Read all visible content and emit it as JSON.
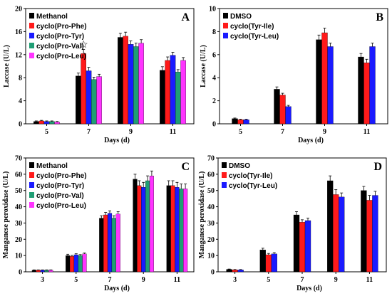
{
  "colors": {
    "black": "#000000",
    "red": "#ff1a1a",
    "blue": "#1a1aff",
    "teal": "#1f9e74",
    "magenta": "#ff33ff"
  },
  "chart_data": [
    {
      "id": "A",
      "type": "bar",
      "panel_label": "A",
      "ylabel": "Laccase (U/L)",
      "xlabel": "Days (d)",
      "ylim": [
        0,
        20
      ],
      "yticks": [
        0,
        4,
        8,
        12,
        16,
        20
      ],
      "categories": [
        "5",
        "7",
        "9",
        "11"
      ],
      "legend_position": "top-left",
      "annotation": {
        "symbol": "star",
        "category": "7",
        "series": "cyclo(Pro-Phe)"
      },
      "series": [
        {
          "name": "Methanol",
          "color": "#000000",
          "values": [
            0.4,
            8.3,
            15.0,
            9.3
          ],
          "errors": [
            0.1,
            0.5,
            0.7,
            0.6
          ]
        },
        {
          "name": "cyclo(Pro-Phe)",
          "color": "#ff1a1a",
          "values": [
            0.5,
            12.2,
            15.2,
            11.0
          ],
          "errors": [
            0.1,
            0.7,
            0.7,
            0.6
          ]
        },
        {
          "name": "cyclo(Pro-Tyr)",
          "color": "#1a1aff",
          "values": [
            0.4,
            9.2,
            13.8,
            11.9
          ],
          "errors": [
            0.1,
            0.6,
            0.6,
            0.5
          ]
        },
        {
          "name": "cyclo(Pro-Val)",
          "color": "#1f9e74",
          "values": [
            0.4,
            7.7,
            13.4,
            9.0
          ],
          "errors": [
            0.1,
            0.4,
            0.6,
            0.4
          ]
        },
        {
          "name": "cyclo(Pro-Leu)",
          "color": "#ff33ff",
          "values": [
            0.3,
            8.2,
            14.0,
            11.0
          ],
          "errors": [
            0.1,
            0.4,
            0.6,
            0.5
          ]
        }
      ]
    },
    {
      "id": "B",
      "type": "bar",
      "panel_label": "B",
      "ylabel": "Laccase (U/L)",
      "xlabel": "Days (d)",
      "ylim": [
        0,
        10
      ],
      "yticks": [
        0,
        2,
        4,
        6,
        8,
        10
      ],
      "categories": [
        "5",
        "7",
        "9",
        "11"
      ],
      "legend_position": "top-left",
      "series": [
        {
          "name": "DMSO",
          "color": "#000000",
          "values": [
            0.45,
            3.0,
            7.3,
            5.8
          ],
          "errors": [
            0.05,
            0.2,
            0.4,
            0.3
          ]
        },
        {
          "name": "cyclo(Tyr-Ile)",
          "color": "#ff1a1a",
          "values": [
            0.35,
            2.5,
            7.9,
            5.3
          ],
          "errors": [
            0.05,
            0.15,
            0.4,
            0.3
          ]
        },
        {
          "name": "cyclo(Tyr-Leu)",
          "color": "#1a1aff",
          "values": [
            0.35,
            1.5,
            6.7,
            6.7
          ],
          "errors": [
            0.05,
            0.1,
            0.3,
            0.3
          ]
        }
      ]
    },
    {
      "id": "C",
      "type": "bar",
      "panel_label": "C",
      "ylabel": "Manganese peroxidase (U/L)",
      "xlabel": "Days (d)",
      "ylim": [
        0,
        70
      ],
      "yticks": [
        0,
        10,
        20,
        30,
        40,
        50,
        60,
        70
      ],
      "categories": [
        "3",
        "5",
        "7",
        "9",
        "11"
      ],
      "legend_position": "top-left",
      "series": [
        {
          "name": "Methanol",
          "color": "#000000",
          "values": [
            1.0,
            10.0,
            33.0,
            57.0,
            53.0
          ],
          "errors": [
            0.2,
            0.8,
            1.5,
            3.0,
            3.0
          ]
        },
        {
          "name": "cyclo(Pro-Phe)",
          "color": "#ff1a1a",
          "values": [
            1.0,
            9.5,
            35.0,
            53.0,
            53.0
          ],
          "errors": [
            0.2,
            0.6,
            1.5,
            3.0,
            3.0
          ]
        },
        {
          "name": "cyclo(Pro-Tyr)",
          "color": "#1a1aff",
          "values": [
            1.0,
            10.5,
            36.0,
            52.0,
            52.0
          ],
          "errors": [
            0.2,
            0.6,
            1.5,
            3.0,
            3.0
          ]
        },
        {
          "name": "cyclo(Pro-Val)",
          "color": "#1f9e74",
          "values": [
            1.0,
            10.0,
            33.0,
            56.0,
            51.0
          ],
          "errors": [
            0.2,
            0.6,
            1.5,
            3.0,
            3.0
          ]
        },
        {
          "name": "cyclo(Pro-Leu)",
          "color": "#ff33ff",
          "values": [
            1.0,
            11.0,
            35.5,
            59.0,
            51.0
          ],
          "errors": [
            0.2,
            0.6,
            1.5,
            3.0,
            3.0
          ]
        }
      ]
    },
    {
      "id": "D",
      "type": "bar",
      "panel_label": "D",
      "ylabel": "Manganese peroxidase (U/L)",
      "xlabel": "Days (d)",
      "ylim": [
        0,
        70
      ],
      "yticks": [
        0,
        10,
        20,
        30,
        40,
        50,
        60,
        70
      ],
      "categories": [
        "3",
        "5",
        "7",
        "9",
        "11"
      ],
      "legend_position": "top-left",
      "series": [
        {
          "name": "DMSO",
          "color": "#000000",
          "values": [
            1.5,
            13.5,
            35.0,
            56.0,
            50.0
          ],
          "errors": [
            0.2,
            1.0,
            2.0,
            3.0,
            2.5
          ]
        },
        {
          "name": "cyclo(Tyr-Ile)",
          "color": "#ff1a1a",
          "values": [
            1.2,
            10.5,
            30.5,
            47.5,
            44.0
          ],
          "errors": [
            0.2,
            0.8,
            1.5,
            3.0,
            3.0
          ]
        },
        {
          "name": "cyclo(Tyr-Leu)",
          "color": "#1a1aff",
          "values": [
            1.2,
            11.0,
            31.5,
            46.0,
            47.0
          ],
          "errors": [
            0.2,
            0.8,
            1.5,
            2.5,
            2.5
          ]
        }
      ]
    }
  ]
}
